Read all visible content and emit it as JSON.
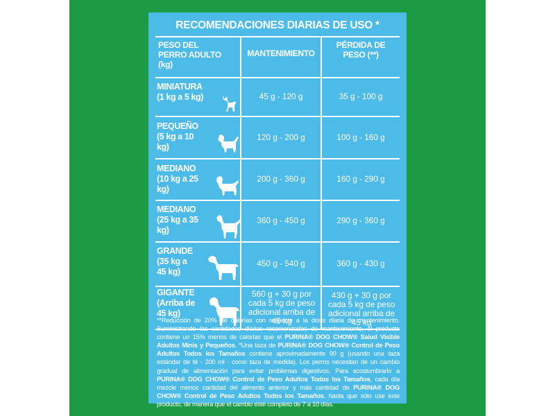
{
  "title": "RECOMENDACIONES DIARIAS DE USO *",
  "headers": {
    "weight": "PESO DEL PERRO ADULTO (kg)",
    "maintenance": "MANTENIMIENTO",
    "loss": "PÉRDIDA DE PESO (**)"
  },
  "rows": [
    {
      "label": "MINIATURA (1 kg a 5 kg)",
      "maintenance": "45 g - 120 g",
      "loss": "35 g - 100 g",
      "dog_icon": "chihuahua-icon"
    },
    {
      "label": "PEQUEÑO (5 kg a 10 kg)",
      "maintenance": "120 g - 200 g",
      "loss": "100 g - 160 g",
      "dog_icon": "terrier-icon"
    },
    {
      "label": "MEDIANO (10 kg a 25 kg)",
      "maintenance": "200 g - 360 g",
      "loss": "160 g - 290 g",
      "dog_icon": "spaniel-icon"
    },
    {
      "label": "MEDIANO (25 kg a 35 kg)",
      "maintenance": "360 g - 450 g",
      "loss": "290 g - 360 g",
      "dog_icon": "pointer-icon"
    },
    {
      "label": "GRANDE (35 kg a 45 kg)",
      "maintenance": "450 g - 540 g",
      "loss": "360 g - 430 g",
      "dog_icon": "labrador-icon"
    },
    {
      "label": "GIGANTE (Arriba de 45 kg)",
      "maintenance": "560 g + 30 g por cada 5 kg de peso adicional arriba de 45 kg",
      "loss": "430 g + 30 g por cada 5 kg de peso adicional arriba de 45 kg",
      "dog_icon": "mastiff-icon"
    }
  ],
  "footnote": {
    "p1": "**Reducción de 20% de calorías con respecto a la dosis diaria de mantenimiento. Suministrando las cantidades diarias recomendadas de mantenimiento, el producto contiene un 15% menos de calorías que el ",
    "b1": "PURINA® DOG CHOW® Salud Visible Adultos Minis y Pequeños",
    "p2": ". *Una taza de ",
    "b2": "PURINA® DOG CHOW® Control de Peso Adultos Todos los Tamaños",
    "p3": " contiene aproximadamente 90 g (usando una taza estándar de té - 200 ml - como taza de medida). Los perros necesitan de un cambio gradual de alimentación para evitar problemas digestivos. Para acostumbrarlo a ",
    "b3": "PURINA® DOG CHOW® Control de Peso Adultos Todos los Tamaños",
    "p4": ", cada día mezcle menos cantidad del alimento anterior y más cantidad de ",
    "b4": "PURINA® DOG CHOW® Control de Peso Adultos Todos los Tamaños",
    "p5": ", hasta que sólo use este producto, de manera que el cambio esté completo de 7 a 10 días."
  },
  "colors": {
    "background_green": "#1d9a44",
    "panel_blue": "#4dbbe8",
    "text": "#ffffff"
  }
}
